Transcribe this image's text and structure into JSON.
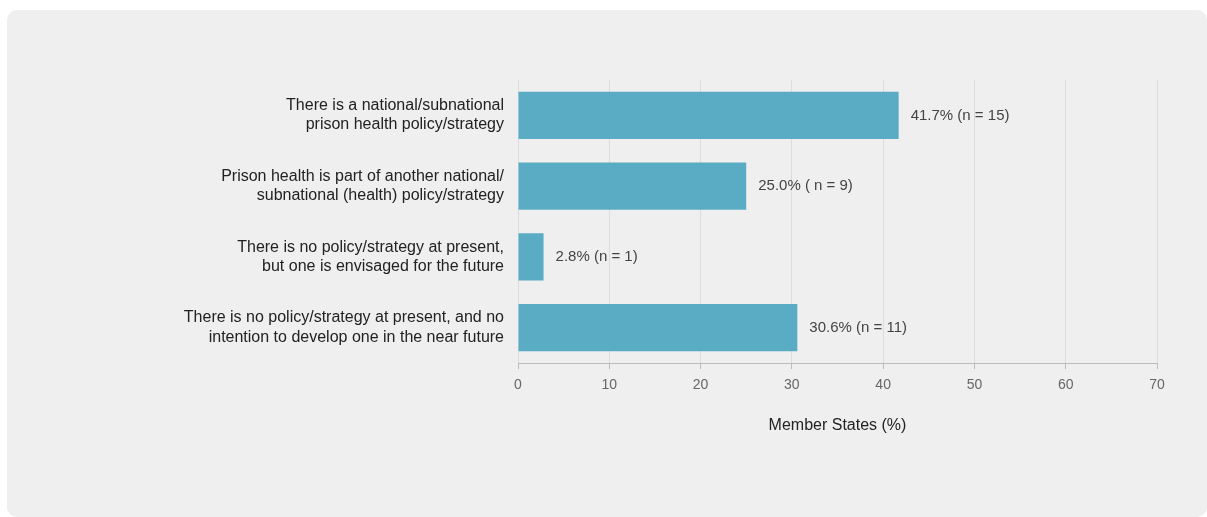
{
  "chart_data": {
    "type": "bar",
    "orientation": "horizontal",
    "xlabel": "Member States (%)",
    "categories": [
      "There is a national/subnational\nprison health policy/strategy",
      "Prison health is part of another national/\nsubnational (health) policy/strategy",
      "There is no policy/strategy at present,\nbut one is envisaged for the future",
      "There is no policy/strategy at present, and no\nintention to develop one in the near future"
    ],
    "values": [
      41.7,
      25.0,
      2.8,
      30.6
    ],
    "value_labels": [
      "41.7% (n = 15)",
      "25.0% ( n = 9)",
      "2.8% (n = 1)",
      "30.6% (n = 11)"
    ],
    "color": "#5aabc4",
    "xlim": [
      0,
      70
    ],
    "xticks": [
      0,
      10,
      20,
      30,
      40,
      50,
      60,
      70
    ],
    "grid": "x",
    "legend": false
  }
}
